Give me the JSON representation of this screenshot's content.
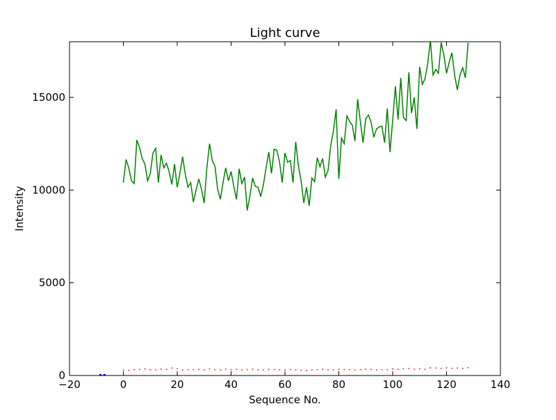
{
  "chart_data": {
    "type": "line",
    "title": "Light curve",
    "xlabel": "Sequence No.",
    "ylabel": "Intensity",
    "xlim": [
      -20,
      140
    ],
    "ylim": [
      0,
      18000
    ],
    "xticks": [
      "-20",
      "0",
      "20",
      "40",
      "60",
      "80",
      "100",
      "120",
      "140"
    ],
    "yticks": [
      "0",
      "5000",
      "10000",
      "15000"
    ],
    "grid": false,
    "series": [
      {
        "color": "#008000",
        "style": "solid",
        "x": [
          0,
          1,
          2,
          3,
          4,
          5,
          6,
          7,
          8,
          9,
          10,
          11,
          12,
          13,
          14,
          15,
          16,
          17,
          18,
          19,
          20,
          21,
          22,
          23,
          24,
          25,
          26,
          27,
          28,
          29,
          30,
          31,
          32,
          33,
          34,
          35,
          36,
          37,
          38,
          39,
          40,
          41,
          42,
          43,
          44,
          45,
          46,
          47,
          48,
          49,
          50,
          51,
          52,
          53,
          54,
          55,
          56,
          57,
          58,
          59,
          60,
          61,
          62,
          63,
          64,
          65,
          66,
          67,
          68,
          69,
          70,
          71,
          72,
          73,
          74,
          75,
          76,
          77,
          78,
          79,
          80,
          81,
          82,
          83,
          84,
          85,
          86,
          87,
          88,
          89,
          90,
          91,
          92,
          93,
          94,
          95,
          96,
          97,
          98,
          99,
          100,
          101,
          102,
          103,
          104,
          105,
          106,
          107,
          108,
          109,
          110,
          111,
          112,
          113,
          114,
          115,
          116,
          117,
          118,
          119,
          120,
          121,
          122,
          123,
          124,
          125,
          126,
          127,
          128
        ],
        "y": [
          10400,
          11650,
          11200,
          10500,
          10350,
          12700,
          12300,
          11700,
          11400,
          10500,
          10900,
          12000,
          12250,
          10400,
          11900,
          11200,
          11450,
          11000,
          10300,
          11400,
          10150,
          10900,
          11800,
          10850,
          10150,
          10400,
          9350,
          10000,
          10600,
          10050,
          9300,
          11200,
          12500,
          11600,
          11300,
          10050,
          9500,
          10400,
          11200,
          10500,
          11000,
          10200,
          9500,
          11150,
          10350,
          10700,
          8900,
          9700,
          10650,
          10200,
          10150,
          9650,
          10300,
          11200,
          12050,
          10900,
          12200,
          12150,
          11500,
          10400,
          12000,
          11500,
          11600,
          10400,
          12600,
          11300,
          10500,
          9300,
          10150,
          9150,
          10650,
          10450,
          11750,
          11250,
          11700,
          10700,
          11050,
          12400,
          13200,
          14350,
          10600,
          12800,
          12500,
          14000,
          13700,
          13500,
          12650,
          14900,
          13700,
          12550,
          13850,
          14050,
          13650,
          12850,
          13300,
          13400,
          13450,
          12550,
          14400,
          12050,
          13750,
          15600,
          13800,
          16050,
          13900,
          13750,
          16350,
          14150,
          15000,
          13300,
          16650,
          15700,
          16000,
          16800,
          18100,
          16200,
          16500,
          16300,
          17950,
          17300,
          16300,
          16900,
          17400,
          16200,
          15400,
          16200,
          16600,
          16050,
          17950
        ]
      },
      {
        "color": "#ff0000",
        "style": "dotted",
        "x": [
          0,
          2,
          4,
          6,
          8,
          10,
          12,
          14,
          16,
          18,
          20,
          22,
          24,
          26,
          28,
          30,
          32,
          34,
          36,
          38,
          40,
          42,
          44,
          46,
          48,
          50,
          52,
          54,
          56,
          58,
          60,
          62,
          64,
          66,
          68,
          70,
          72,
          74,
          76,
          78,
          80,
          82,
          84,
          86,
          88,
          90,
          92,
          94,
          96,
          98,
          100,
          102,
          104,
          106,
          108,
          110,
          112,
          114,
          116,
          118,
          120,
          122,
          124,
          126,
          128
        ],
        "y": [
          300,
          280,
          320,
          330,
          350,
          310,
          300,
          340,
          330,
          400,
          360,
          300,
          320,
          310,
          330,
          300,
          350,
          320,
          300,
          340,
          310,
          330,
          300,
          320,
          340,
          310,
          300,
          330,
          320,
          310,
          300,
          320,
          310,
          280,
          260,
          300,
          320,
          340,
          310,
          300,
          330,
          320,
          310,
          300,
          320,
          340,
          330,
          300,
          310,
          320,
          350,
          330,
          360,
          380,
          340,
          360,
          330,
          410,
          400,
          380,
          410,
          390,
          400,
          380,
          420
        ]
      },
      {
        "color": "#0000ff",
        "style": "marker",
        "x": [
          -8.5,
          -7
        ],
        "y": [
          0,
          0
        ]
      }
    ]
  }
}
